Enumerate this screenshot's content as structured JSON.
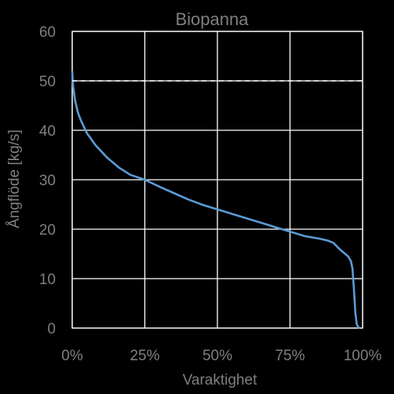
{
  "chart_data": {
    "type": "line",
    "title": "Biopanna",
    "xlabel": "Varaktighet",
    "ylabel": "Ångflöde [kg/s]",
    "xlim": [
      0,
      1
    ],
    "ylim": [
      0,
      60
    ],
    "x_ticks": [
      0,
      0.25,
      0.5,
      0.75,
      1
    ],
    "x_tick_labels": [
      "0%",
      "25%",
      "50%",
      "75%",
      "100%"
    ],
    "y_ticks": [
      0,
      10,
      20,
      30,
      40,
      50,
      60
    ],
    "y_tick_labels": [
      "0",
      "10",
      "20",
      "30",
      "40",
      "50",
      "60"
    ],
    "grid": true,
    "series": [
      {
        "color": "#5b9bd5",
        "x": [
          0,
          0.003,
          0.01,
          0.02,
          0.03,
          0.05,
          0.08,
          0.12,
          0.16,
          0.2,
          0.25,
          0.3,
          0.35,
          0.4,
          0.45,
          0.5,
          0.55,
          0.6,
          0.65,
          0.7,
          0.75,
          0.8,
          0.85,
          0.88,
          0.9,
          0.92,
          0.94,
          0.95,
          0.96,
          0.965,
          0.97,
          0.975,
          0.98,
          0.985,
          0.99
        ],
        "y": [
          52,
          49,
          46,
          43.5,
          42,
          39.5,
          37,
          34.5,
          32.5,
          31,
          30,
          28.6,
          27.3,
          26,
          24.9,
          24,
          23.1,
          22.2,
          21.3,
          20.4,
          19.5,
          18.6,
          18.1,
          17.7,
          17.2,
          16,
          15,
          14.5,
          13.5,
          12,
          8,
          3,
          0.8,
          0.2,
          0
        ]
      },
      {
        "color": "#ffffff",
        "dashed": true,
        "x": [
          0,
          1
        ],
        "y": [
          50,
          50
        ]
      }
    ]
  }
}
